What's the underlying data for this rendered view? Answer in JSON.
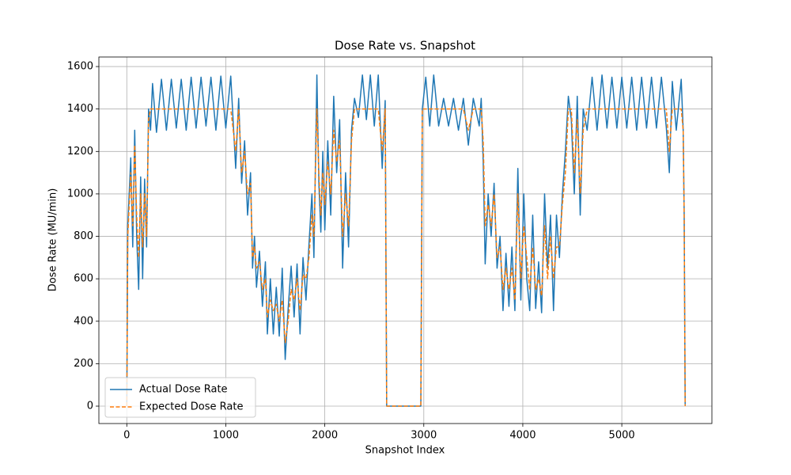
{
  "chart_data": {
    "type": "line",
    "title": "Dose Rate vs. Snapshot",
    "xlabel": "Snapshot Index",
    "ylabel": "Dose Rate (MU/min)",
    "xlim": [
      -282,
      5910
    ],
    "ylim": [
      -82,
      1645
    ],
    "xticks": [
      0,
      1000,
      2000,
      3000,
      4000,
      5000
    ],
    "yticks": [
      0,
      200,
      400,
      600,
      800,
      1000,
      1200,
      1400,
      1600
    ],
    "grid": true,
    "legend": "lower left",
    "x": [
      0,
      10,
      40,
      60,
      80,
      100,
      120,
      140,
      160,
      180,
      200,
      220,
      240,
      260,
      300,
      350,
      400,
      450,
      500,
      550,
      600,
      650,
      700,
      750,
      800,
      850,
      900,
      950,
      1000,
      1050,
      1100,
      1130,
      1160,
      1190,
      1220,
      1250,
      1270,
      1290,
      1310,
      1340,
      1370,
      1400,
      1420,
      1450,
      1480,
      1510,
      1540,
      1570,
      1600,
      1630,
      1660,
      1690,
      1720,
      1750,
      1780,
      1810,
      1840,
      1870,
      1890,
      1920,
      1940,
      1960,
      1980,
      2000,
      2030,
      2060,
      2090,
      2120,
      2150,
      2180,
      2210,
      2240,
      2270,
      2300,
      2340,
      2380,
      2420,
      2460,
      2500,
      2540,
      2580,
      2610,
      2625,
      2970,
      2985,
      3020,
      3060,
      3100,
      3150,
      3200,
      3250,
      3300,
      3350,
      3400,
      3450,
      3500,
      3560,
      3580,
      3600,
      3620,
      3650,
      3680,
      3710,
      3740,
      3770,
      3800,
      3830,
      3860,
      3890,
      3920,
      3950,
      3980,
      4010,
      4040,
      4070,
      4100,
      4130,
      4160,
      4190,
      4220,
      4250,
      4280,
      4310,
      4340,
      4370,
      4400,
      4430,
      4460,
      4490,
      4520,
      4550,
      4580,
      4610,
      4650,
      4700,
      4750,
      4800,
      4850,
      4900,
      4950,
      5000,
      5050,
      5100,
      5150,
      5200,
      5250,
      5300,
      5350,
      5400,
      5450,
      5480,
      5510,
      5550,
      5600,
      5620,
      5630,
      5640
    ],
    "series": [
      {
        "name": "Actual Dose Rate",
        "color": "#1f77b4",
        "linestyle": "solid",
        "values": [
          0,
          850,
          1170,
          750,
          1300,
          800,
          550,
          1080,
          600,
          1070,
          750,
          1400,
          1300,
          1520,
          1290,
          1540,
          1300,
          1540,
          1310,
          1540,
          1300,
          1550,
          1310,
          1550,
          1320,
          1550,
          1300,
          1555,
          1310,
          1555,
          1120,
          1450,
          1050,
          1250,
          900,
          1100,
          650,
          800,
          560,
          730,
          470,
          680,
          340,
          600,
          340,
          560,
          330,
          650,
          220,
          460,
          660,
          420,
          670,
          340,
          700,
          500,
          760,
          1000,
          700,
          1560,
          1050,
          820,
          1200,
          830,
          1250,
          900,
          1460,
          1100,
          1350,
          650,
          1100,
          750,
          1300,
          1450,
          1360,
          1560,
          1350,
          1560,
          1320,
          1560,
          1120,
          1440,
          0,
          0,
          1400,
          1550,
          1320,
          1560,
          1320,
          1450,
          1320,
          1450,
          1300,
          1450,
          1230,
          1450,
          1320,
          1450,
          1150,
          670,
          1000,
          800,
          1050,
          650,
          800,
          450,
          720,
          470,
          750,
          450,
          1120,
          500,
          1000,
          600,
          450,
          900,
          460,
          680,
          440,
          1000,
          650,
          900,
          450,
          900,
          700,
          1000,
          1200,
          1460,
          1350,
          1000,
          1460,
          900,
          1400,
          1300,
          1550,
          1300,
          1560,
          1310,
          1550,
          1310,
          1550,
          1310,
          1550,
          1300,
          1550,
          1310,
          1550,
          1310,
          1550,
          1310,
          1100,
          1530,
          1300,
          1540,
          1300,
          900,
          0
        ]
      },
      {
        "name": "Expected Dose Rate",
        "color": "#ff7f0e",
        "linestyle": "dashed",
        "values": [
          0,
          800,
          1100,
          850,
          1230,
          900,
          700,
          1000,
          750,
          1000,
          800,
          1350,
          1400,
          1400,
          1400,
          1400,
          1400,
          1400,
          1400,
          1400,
          1400,
          1400,
          1400,
          1400,
          1400,
          1400,
          1400,
          1400,
          1400,
          1400,
          1200,
          1400,
          1100,
          1200,
          1000,
          1050,
          700,
          750,
          650,
          680,
          550,
          600,
          420,
          500,
          450,
          480,
          400,
          500,
          300,
          400,
          550,
          500,
          600,
          450,
          620,
          600,
          700,
          900,
          800,
          1400,
          1100,
          900,
          1100,
          950,
          1150,
          1000,
          1300,
          1150,
          1250,
          800,
          1000,
          850,
          1250,
          1400,
          1400,
          1400,
          1400,
          1400,
          1400,
          1400,
          1200,
          1400,
          0,
          0,
          1400,
          1400,
          1400,
          1400,
          1400,
          1400,
          1400,
          1400,
          1400,
          1400,
          1300,
          1400,
          1400,
          1400,
          1250,
          850,
          950,
          850,
          1000,
          700,
          750,
          550,
          650,
          550,
          650,
          500,
          1000,
          600,
          850,
          700,
          550,
          750,
          550,
          600,
          520,
          850,
          600,
          800,
          600,
          750,
          750,
          950,
          1100,
          1400,
          1400,
          1100,
          1350,
          1000,
          1300,
          1400,
          1400,
          1400,
          1400,
          1400,
          1400,
          1400,
          1400,
          1400,
          1400,
          1400,
          1400,
          1400,
          1400,
          1400,
          1400,
          1400,
          1200,
          1400,
          1400,
          1400,
          1300,
          900,
          0
        ]
      }
    ]
  }
}
